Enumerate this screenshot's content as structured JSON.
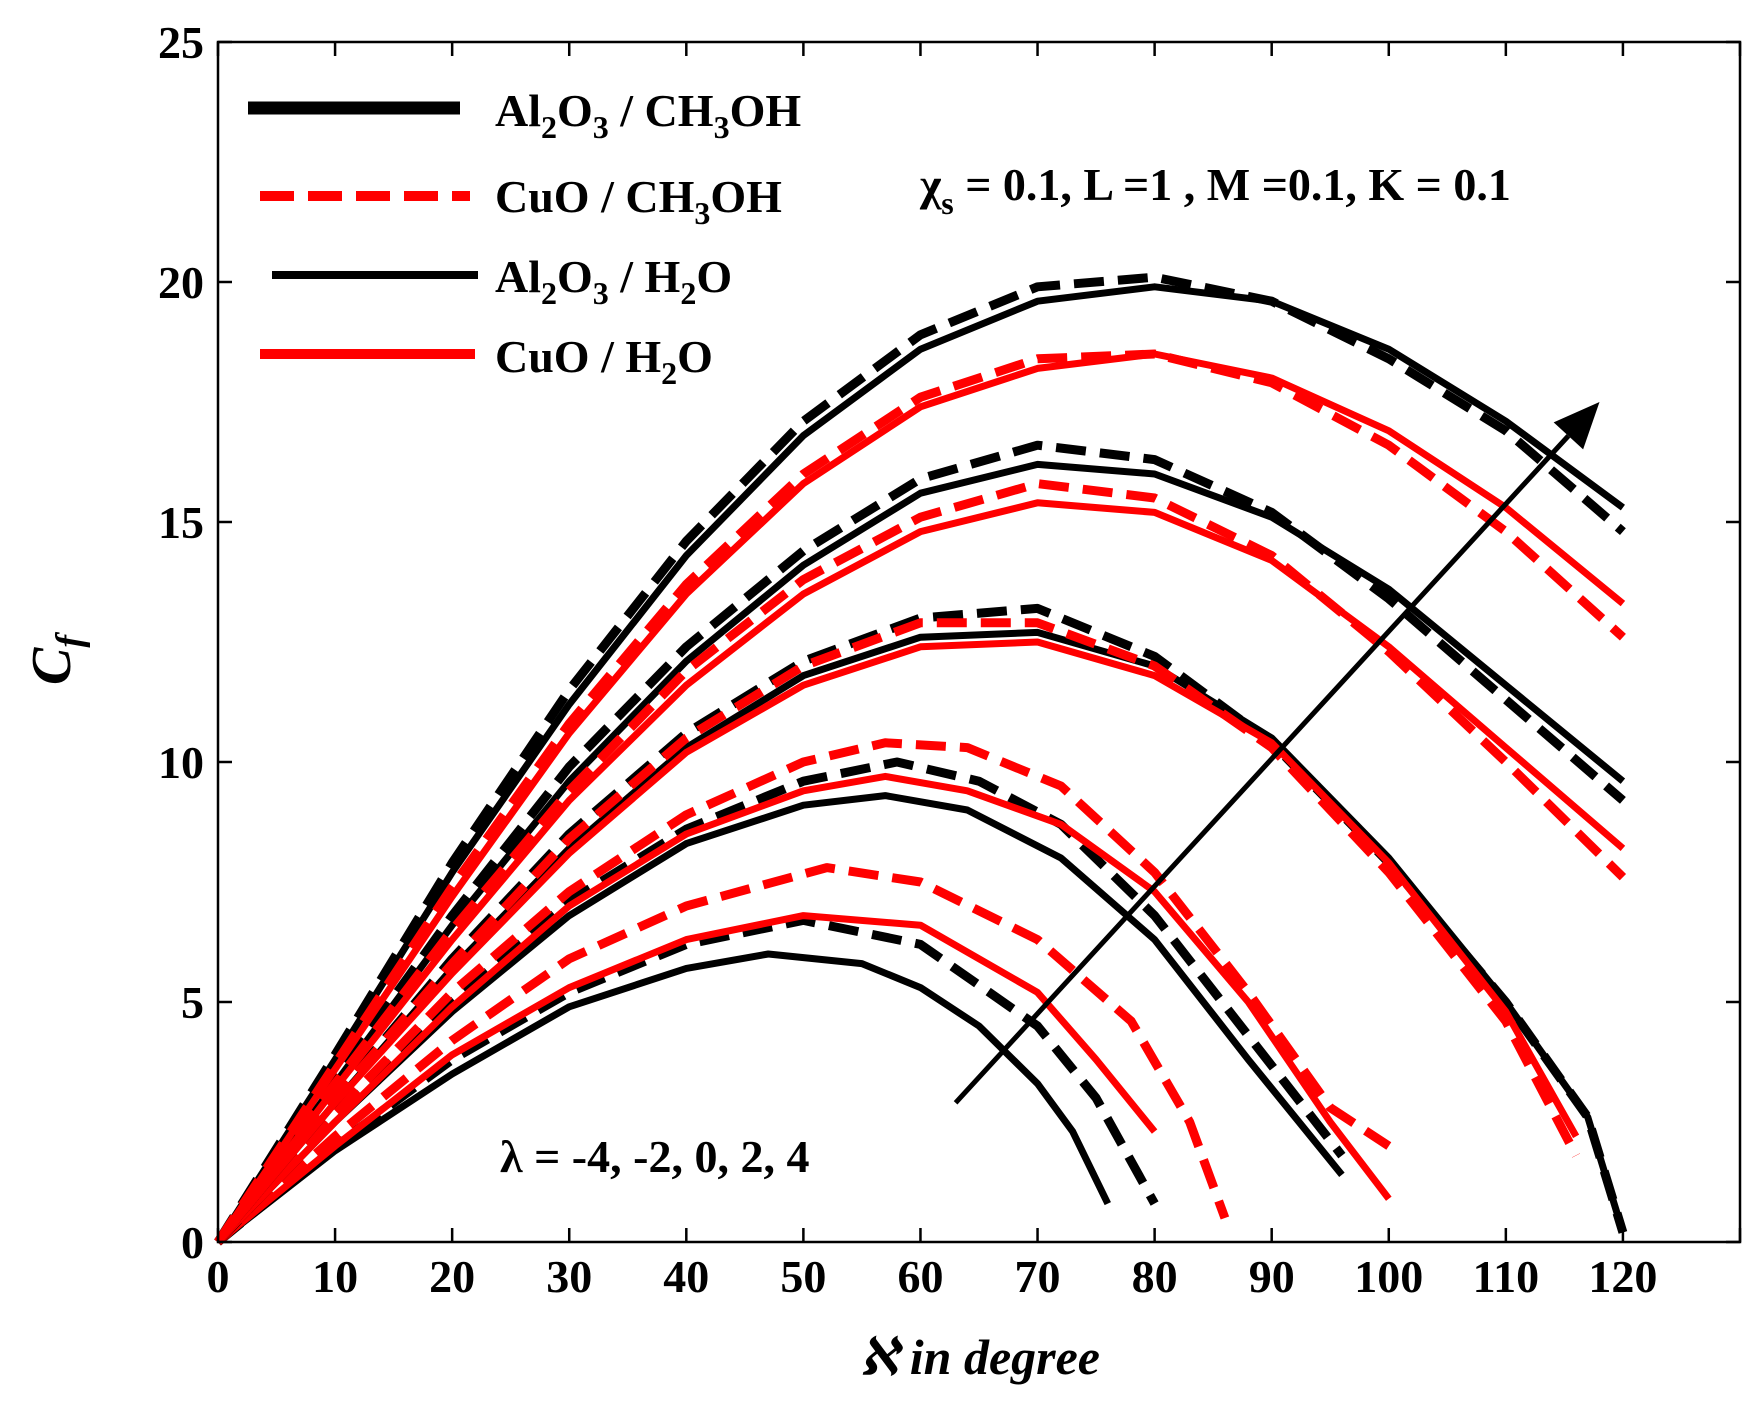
{
  "chart_data": {
    "type": "line",
    "title": "",
    "xlabel": "ℵ in degree",
    "ylabel_main": "C",
    "ylabel_sub": "f",
    "xlim": [
      0,
      130
    ],
    "ylim": [
      0,
      25
    ],
    "xticks": [
      0,
      10,
      20,
      30,
      40,
      50,
      60,
      70,
      80,
      90,
      100,
      110,
      120,
      130
    ],
    "xtick_labels": [
      "0",
      "10",
      "20",
      "30",
      "40",
      "50",
      "60",
      "70",
      "80",
      "90",
      "100",
      "110",
      "120",
      ""
    ],
    "yticks": [
      0,
      5,
      10,
      15,
      20,
      25
    ],
    "ytick_labels": [
      "0",
      "5",
      "10",
      "15",
      "20",
      "25"
    ],
    "grid": false,
    "legend_position": "top-left",
    "colors": {
      "black": "#000000",
      "red": "#ff0000"
    },
    "legend": [
      {
        "base1": "Al",
        "sub1": "2",
        "base2": "O",
        "sub2": "3",
        "base3": " / CH",
        "sub3": "3",
        "base4": "OH",
        "color": "#000000",
        "style": "dashed-thick"
      },
      {
        "base1": "CuO / CH",
        "sub1": "3",
        "base2": "OH",
        "color": "#ff0000",
        "style": "dashed"
      },
      {
        "base1": "Al",
        "sub1": "2",
        "base2": "O",
        "sub2": "3",
        "base3": " / H",
        "sub3": "2",
        "base4": "O",
        "color": "#000000",
        "style": "solid"
      },
      {
        "base1": "CuO / H",
        "sub1": "2",
        "base2": "O",
        "color": "#ff0000",
        "style": "solid"
      }
    ],
    "annotations": {
      "params_chi": "χ",
      "params_sub": "s",
      "params_rest": " = 0.1, L =1 , M =0.1, K = 0.1",
      "lambda_text": "λ = -4, -2, 0, 2, 4"
    },
    "series": [
      {
        "name": "Al2O3/CH3OH λ=-4",
        "color": "#000000",
        "dash": true,
        "x": [
          0,
          10,
          20,
          30,
          40,
          50,
          60,
          70,
          75,
          80
        ],
        "y": [
          0,
          2.0,
          3.8,
          5.2,
          6.2,
          6.7,
          6.2,
          4.5,
          3.0,
          0.8
        ]
      },
      {
        "name": "Al2O3/H2O λ=-4",
        "color": "#000000",
        "dash": false,
        "x": [
          0,
          10,
          20,
          30,
          40,
          47,
          55,
          60,
          65,
          70,
          73,
          76
        ],
        "y": [
          0,
          1.9,
          3.5,
          4.9,
          5.7,
          6.0,
          5.8,
          5.3,
          4.5,
          3.3,
          2.3,
          0.8
        ]
      },
      {
        "name": "CuO/CH3OH λ=-4",
        "color": "#ff0000",
        "dash": true,
        "x": [
          0,
          10,
          20,
          30,
          40,
          52,
          60,
          70,
          78,
          83,
          86
        ],
        "y": [
          0,
          2.2,
          4.2,
          5.9,
          7.0,
          7.8,
          7.5,
          6.3,
          4.6,
          2.5,
          0.5
        ]
      },
      {
        "name": "CuO/H2O λ=-4",
        "color": "#ff0000",
        "dash": false,
        "x": [
          0,
          10,
          20,
          30,
          40,
          50,
          60,
          70,
          75,
          80
        ],
        "y": [
          0,
          2.0,
          3.9,
          5.3,
          6.3,
          6.8,
          6.6,
          5.2,
          3.8,
          2.3
        ]
      },
      {
        "name": "Al2O3/CH3OH λ=-2",
        "color": "#000000",
        "dash": true,
        "x": [
          0,
          10,
          20,
          30,
          40,
          50,
          58,
          65,
          72,
          80,
          88,
          96
        ],
        "y": [
          0,
          2.6,
          5.0,
          7.1,
          8.6,
          9.6,
          10.0,
          9.6,
          8.7,
          6.8,
          4.3,
          1.8
        ]
      },
      {
        "name": "Al2O3/H2O λ=-2",
        "color": "#000000",
        "dash": false,
        "x": [
          0,
          10,
          20,
          30,
          40,
          50,
          57,
          64,
          72,
          80,
          88,
          96
        ],
        "y": [
          0,
          2.5,
          4.8,
          6.8,
          8.3,
          9.1,
          9.3,
          9.0,
          8.0,
          6.3,
          3.8,
          1.4
        ]
      },
      {
        "name": "CuO/CH3OH λ=-2",
        "color": "#ff0000",
        "dash": true,
        "x": [
          0,
          10,
          20,
          30,
          40,
          50,
          57,
          64,
          72,
          80,
          88,
          95,
          100
        ],
        "y": [
          0,
          2.7,
          5.2,
          7.3,
          8.9,
          10.0,
          10.4,
          10.3,
          9.5,
          7.7,
          5.2,
          2.8,
          2.0
        ]
      },
      {
        "name": "CuO/H2O λ=-2",
        "color": "#ff0000",
        "dash": false,
        "x": [
          0,
          10,
          20,
          30,
          40,
          50,
          57,
          64,
          72,
          80,
          88,
          95,
          100
        ],
        "y": [
          0,
          2.5,
          4.9,
          7.0,
          8.5,
          9.4,
          9.7,
          9.4,
          8.7,
          7.3,
          5.0,
          2.5,
          0.9
        ]
      },
      {
        "name": "Al2O3/CH3OH λ=0",
        "color": "#000000",
        "dash": true,
        "x": [
          0,
          10,
          20,
          30,
          40,
          50,
          60,
          70,
          80,
          90,
          100,
          110,
          117,
          120
        ],
        "y": [
          0,
          3.0,
          5.9,
          8.5,
          10.6,
          12.1,
          13.0,
          13.2,
          12.2,
          10.4,
          7.9,
          5.0,
          2.6,
          0.2
        ]
      },
      {
        "name": "Al2O3/H2O λ=0",
        "color": "#000000",
        "dash": false,
        "x": [
          0,
          10,
          20,
          30,
          40,
          50,
          60,
          70,
          80,
          90,
          100,
          110,
          117,
          120
        ],
        "y": [
          0,
          2.9,
          5.7,
          8.2,
          10.3,
          11.8,
          12.6,
          12.7,
          12.0,
          10.5,
          8.0,
          5.0,
          2.6,
          0.2
        ]
      },
      {
        "name": "CuO/CH3OH λ=0",
        "color": "#ff0000",
        "dash": true,
        "x": [
          0,
          10,
          20,
          30,
          40,
          50,
          60,
          70,
          80,
          90,
          100,
          110,
          116
        ],
        "y": [
          0,
          3.0,
          5.8,
          8.4,
          10.5,
          12.0,
          12.9,
          12.9,
          12.0,
          10.3,
          7.7,
          4.6,
          1.8
        ]
      },
      {
        "name": "CuO/H2O λ=0",
        "color": "#ff0000",
        "dash": false,
        "x": [
          0,
          10,
          20,
          30,
          40,
          50,
          60,
          70,
          80,
          90,
          100,
          110,
          116
        ],
        "y": [
          0,
          2.9,
          5.6,
          8.1,
          10.2,
          11.6,
          12.4,
          12.5,
          11.8,
          10.4,
          7.9,
          4.8,
          2.2
        ]
      },
      {
        "name": "Al2O3/CH3OH λ=2",
        "color": "#000000",
        "dash": true,
        "x": [
          0,
          10,
          20,
          30,
          40,
          50,
          60,
          70,
          80,
          90,
          100,
          110,
          120
        ],
        "y": [
          0,
          3.4,
          6.8,
          9.9,
          12.4,
          14.4,
          15.9,
          16.6,
          16.3,
          15.2,
          13.4,
          11.3,
          9.2
        ]
      },
      {
        "name": "Al2O3/H2O λ=2",
        "color": "#000000",
        "dash": false,
        "x": [
          0,
          10,
          20,
          30,
          40,
          50,
          60,
          70,
          80,
          90,
          100,
          110,
          120
        ],
        "y": [
          0,
          3.3,
          6.6,
          9.6,
          12.1,
          14.1,
          15.6,
          16.2,
          16.0,
          15.1,
          13.6,
          11.6,
          9.6
        ]
      },
      {
        "name": "CuO/CH3OH λ=2",
        "color": "#ff0000",
        "dash": true,
        "x": [
          0,
          10,
          20,
          30,
          40,
          50,
          60,
          70,
          80,
          90,
          100,
          110,
          120
        ],
        "y": [
          0,
          3.3,
          6.5,
          9.4,
          11.9,
          13.8,
          15.1,
          15.8,
          15.5,
          14.3,
          12.3,
          10.0,
          7.6
        ]
      },
      {
        "name": "CuO/H2O λ=2",
        "color": "#ff0000",
        "dash": false,
        "x": [
          0,
          10,
          20,
          30,
          40,
          50,
          60,
          70,
          80,
          90,
          100,
          110,
          120
        ],
        "y": [
          0,
          3.2,
          6.3,
          9.2,
          11.6,
          13.5,
          14.8,
          15.4,
          15.2,
          14.2,
          12.4,
          10.3,
          8.2
        ]
      },
      {
        "name": "Al2O3/CH3OH λ=4",
        "color": "#000000",
        "dash": true,
        "x": [
          0,
          10,
          20,
          30,
          40,
          50,
          60,
          70,
          80,
          90,
          100,
          110,
          120
        ],
        "y": [
          0,
          3.9,
          7.9,
          11.5,
          14.6,
          17.1,
          18.9,
          19.9,
          20.1,
          19.6,
          18.4,
          16.9,
          14.8
        ]
      },
      {
        "name": "Al2O3/H2O λ=4",
        "color": "#000000",
        "dash": false,
        "x": [
          0,
          10,
          20,
          30,
          40,
          50,
          60,
          70,
          80,
          90,
          100,
          110,
          120
        ],
        "y": [
          0,
          3.8,
          7.7,
          11.2,
          14.3,
          16.8,
          18.6,
          19.6,
          19.9,
          19.6,
          18.6,
          17.1,
          15.3
        ]
      },
      {
        "name": "CuO/CH3OH λ=4",
        "color": "#ff0000",
        "dash": true,
        "x": [
          0,
          10,
          20,
          30,
          40,
          50,
          60,
          70,
          80,
          90,
          100,
          110,
          120
        ],
        "y": [
          0,
          3.7,
          7.4,
          10.8,
          13.7,
          16.0,
          17.6,
          18.4,
          18.5,
          17.9,
          16.6,
          14.8,
          12.6
        ]
      },
      {
        "name": "CuO/H2O λ=4",
        "color": "#ff0000",
        "dash": false,
        "x": [
          0,
          10,
          20,
          30,
          40,
          50,
          60,
          70,
          80,
          90,
          100,
          110,
          120
        ],
        "y": [
          0,
          3.6,
          7.2,
          10.6,
          13.5,
          15.8,
          17.4,
          18.2,
          18.5,
          18.0,
          16.9,
          15.3,
          13.3
        ]
      }
    ],
    "arrow": {
      "from": [
        63,
        2.9
      ],
      "to": [
        118,
        17.5
      ]
    }
  }
}
